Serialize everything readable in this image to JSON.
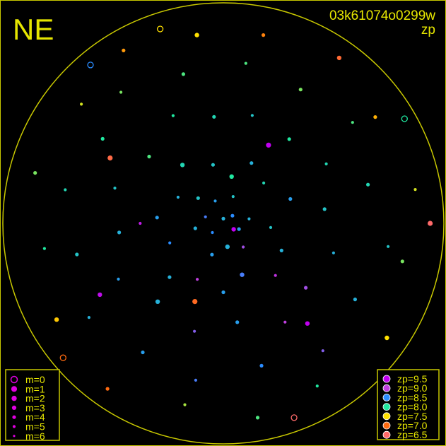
{
  "header": {
    "corner_label": "NE",
    "image_id": "03k61074o0299w",
    "quantity": "zp"
  },
  "colors": {
    "frame": "#c8c800",
    "text": "#e6e600",
    "background": "#000000"
  },
  "chart_data": {
    "type": "scatter",
    "projection": "all-sky polar (azimuth, altitude); zenith at center, horizon circle at edge",
    "grid": false,
    "size_legend": {
      "placement": "bottom-left",
      "entries": [
        "m=0",
        "m=1",
        "m=2",
        "m=3",
        "m=4",
        "m=5",
        "m=6"
      ]
    },
    "color_legend": {
      "placement": "bottom-right",
      "entries": [
        {
          "label": "zp=9.5",
          "zp": 9.5,
          "color": "#c000f0"
        },
        {
          "label": "zp=9.0",
          "zp": 9.0,
          "color": "#c040e0"
        },
        {
          "label": "zp=8.5",
          "zp": 8.5,
          "color": "#2a8cff"
        },
        {
          "label": "zp=8.0",
          "zp": 8.0,
          "color": "#20e8a0"
        },
        {
          "label": "zp=7.5",
          "zp": 7.5,
          "color": "#ffe000"
        },
        {
          "label": "zp=7.0",
          "zp": 7.0,
          "color": "#ff6a10"
        },
        {
          "label": "zp=6.5",
          "zp": 6.5,
          "color": "#ff6a6a"
        }
      ]
    },
    "points_columns": [
      "azimuth_deg",
      "altitude_deg",
      "m",
      "zp"
    ],
    "points": [
      [
        0,
        88,
        3,
        8.3
      ],
      [
        20,
        80,
        4,
        8.4
      ],
      [
        45,
        75,
        3,
        8.2
      ],
      [
        70,
        82,
        4,
        8.6
      ],
      [
        100,
        78,
        3,
        8.3
      ],
      [
        130,
        84,
        4,
        8.5
      ],
      [
        160,
        76,
        3,
        8.4
      ],
      [
        190,
        80,
        2,
        8.3
      ],
      [
        220,
        77,
        4,
        8.9
      ],
      [
        250,
        83,
        3,
        8.4
      ],
      [
        280,
        79,
        4,
        8.3
      ],
      [
        310,
        85,
        3,
        8.5
      ],
      [
        340,
        78,
        4,
        8.2
      ],
      [
        10,
        65,
        3,
        8.2
      ],
      [
        35,
        60,
        2,
        8.1
      ],
      [
        60,
        68,
        4,
        8.3
      ],
      [
        85,
        62,
        3,
        8.4
      ],
      [
        110,
        66,
        4,
        8.5
      ],
      [
        135,
        58,
        3,
        8.3
      ],
      [
        155,
        64,
        4,
        9.0
      ],
      [
        180,
        61,
        3,
        8.4
      ],
      [
        200,
        67,
        2,
        8.6
      ],
      [
        225,
        59,
        4,
        9.1
      ],
      [
        245,
        63,
        3,
        8.3
      ],
      [
        265,
        70,
        4,
        8.2
      ],
      [
        290,
        60,
        3,
        8.4
      ],
      [
        315,
        66,
        4,
        8.1
      ],
      [
        335,
        62,
        3,
        8.3
      ],
      [
        350,
        70,
        2,
        8.0
      ],
      [
        5,
        45,
        3,
        8.1
      ],
      [
        25,
        40,
        4,
        8.0
      ],
      [
        48,
        48,
        3,
        7.9
      ],
      [
        72,
        42,
        4,
        8.2
      ],
      [
        95,
        46,
        3,
        8.3
      ],
      [
        118,
        40,
        4,
        8.4
      ],
      [
        140,
        47,
        2,
        8.3
      ],
      [
        165,
        43,
        4,
        8.8
      ],
      [
        188,
        48,
        3,
        8.4
      ],
      [
        212,
        41,
        4,
        9.0
      ],
      [
        232,
        46,
        3,
        8.9
      ],
      [
        255,
        42,
        4,
        8.3
      ],
      [
        278,
        47,
        3,
        8.2
      ],
      [
        300,
        40,
        4,
        8.1
      ],
      [
        322,
        45,
        3,
        8.0
      ],
      [
        345,
        43,
        4,
        8.2
      ],
      [
        15,
        25,
        3,
        7.9
      ],
      [
        38,
        20,
        4,
        7.8
      ],
      [
        55,
        28,
        3,
        8.0
      ],
      [
        78,
        22,
        4,
        8.1
      ],
      [
        102,
        27,
        3,
        8.2
      ],
      [
        125,
        21,
        4,
        8.3
      ],
      [
        148,
        26,
        3,
        8.4
      ],
      [
        170,
        23,
        4,
        8.6
      ],
      [
        195,
        28,
        3,
        8.5
      ],
      [
        218,
        22,
        4,
        8.8
      ],
      [
        240,
        26,
        3,
        8.3
      ],
      [
        262,
        20,
        4,
        8.2
      ],
      [
        285,
        27,
        3,
        8.1
      ],
      [
        308,
        21,
        4,
        7.9
      ],
      [
        330,
        25,
        3,
        7.8
      ],
      [
        352,
        22,
        4,
        7.9
      ],
      [
        8,
        10,
        2,
        7.5
      ],
      [
        30,
        6,
        3,
        7.2
      ],
      [
        50,
        12,
        4,
        7.6
      ],
      [
        75,
        8,
        3,
        7.8
      ],
      [
        98,
        14,
        4,
        8.0
      ],
      [
        120,
        9,
        2,
        7.4
      ],
      [
        145,
        5,
        3,
        7.0
      ],
      [
        168,
        12,
        4,
        7.7
      ],
      [
        190,
        7,
        3,
        7.9
      ],
      [
        210,
        11,
        4,
        8.0
      ],
      [
        235,
        6,
        2,
        7.5
      ],
      [
        258,
        13,
        3,
        7.8
      ],
      [
        280,
        8,
        4,
        7.6
      ],
      [
        305,
        12,
        3,
        7.3
      ],
      [
        325,
        5,
        2,
        6.8
      ],
      [
        348,
        9,
        3,
        7.1
      ],
      [
        40,
        3,
        0,
        8.5
      ],
      [
        130,
        2,
        0,
        7.0
      ],
      [
        200,
        3,
        0,
        6.5
      ],
      [
        300,
        2,
        0,
        8.0
      ],
      [
        18,
        4,
        0,
        7.5
      ],
      [
        270,
        3,
        1,
        6.5
      ],
      [
        60,
        35,
        1,
        6.7
      ],
      [
        160,
        55,
        1,
        6.9
      ],
      [
        240,
        85,
        2,
        9.5
      ],
      [
        330,
        52,
        1,
        9.5
      ],
      [
        120,
        30,
        2,
        9.4
      ],
      [
        220,
        35,
        2,
        9.5
      ],
      [
        90,
        55,
        4,
        9.3
      ]
    ]
  }
}
